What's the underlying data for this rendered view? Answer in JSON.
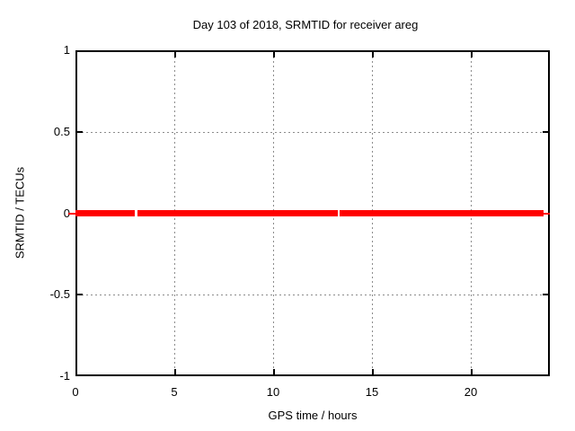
{
  "chart_data": {
    "type": "line",
    "title": "Day 103 of 2018, SRMTID for receiver areg",
    "xlabel": "GPS time / hours",
    "ylabel": "SRMTID / TECUs",
    "xlim": [
      0,
      24
    ],
    "ylim": [
      -1,
      1
    ],
    "xticks": [
      0,
      5,
      10,
      15,
      20
    ],
    "xtick_labels": [
      "0",
      "5",
      "10",
      "15",
      "20"
    ],
    "yticks": [
      1,
      0.5,
      0,
      -0.5,
      -1
    ],
    "ytick_labels": [
      "1",
      "0.5",
      "0",
      "-0.5",
      "-1"
    ],
    "grid": true,
    "grid_ticks_x": [
      5,
      10,
      15,
      20
    ],
    "grid_ticks_y": [
      0.5,
      -0.5
    ],
    "legend": "none",
    "series": [
      {
        "name": "SRMTID",
        "style": "thick horizontal line at constant value",
        "y": 0,
        "color": "#ff0000",
        "segments_hours": [
          [
            0.0,
            3.02
          ],
          [
            3.12,
            13.25
          ],
          [
            13.35,
            23.68
          ]
        ],
        "thin_caps_hours": [
          [
            -0.36,
            0.1
          ],
          [
            23.68,
            24.0
          ]
        ]
      }
    ],
    "colors": {
      "background": "#ffffff",
      "border": "#000000",
      "grid": "#8c8c8c",
      "text": "#000000",
      "series": "#ff0000"
    }
  }
}
